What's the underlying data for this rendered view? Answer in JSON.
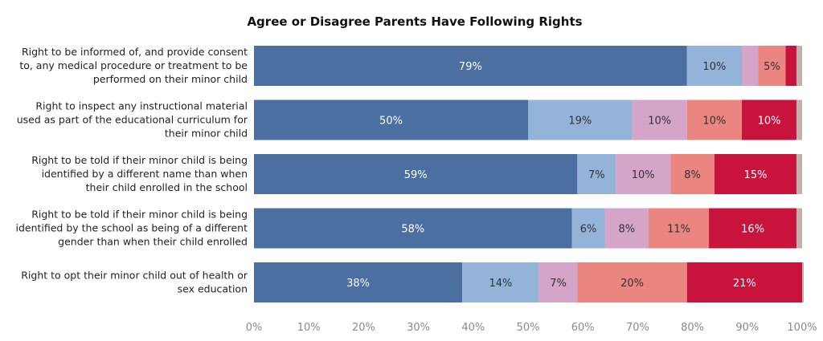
{
  "chart_data": {
    "type": "bar",
    "orientation": "horizontal",
    "stacked": true,
    "title": "Agree or Disagree Parents Have Following Rights",
    "categories": [
      [
        "Right to be informed of, and provide consent",
        "to, any medical procedure or treatment to be",
        "performed on their minor child"
      ],
      [
        "Right to inspect any instructional material",
        "used as part of the educational curriculum for",
        "their minor child"
      ],
      [
        "Right to be told if their minor child is being",
        "identified by a different name than when",
        "their child enrolled in the school"
      ],
      [
        "Right to be told if their minor child is being",
        "identified by the school as being of a different",
        "gender than when their child enrolled"
      ],
      [
        "Right to opt their minor child out of health or",
        "sex education"
      ]
    ],
    "series": [
      {
        "color": "#4a6fa0",
        "label_color": "#ffffff",
        "values": [
          79,
          50,
          59,
          58,
          38
        ],
        "labels": [
          "79%",
          "50%",
          "59%",
          "58%",
          "38%"
        ]
      },
      {
        "color": "#93b3d9",
        "label_color": "#333333",
        "values": [
          10,
          19,
          7,
          6,
          14
        ],
        "labels": [
          "10%",
          "19%",
          "7%",
          "6%",
          "14%"
        ]
      },
      {
        "color": "#d4a4c9",
        "label_color": "#333333",
        "values": [
          3,
          10,
          10,
          8,
          7
        ],
        "labels": [
          "",
          "10%",
          "10%",
          "8%",
          "7%"
        ]
      },
      {
        "color": "#ea8580",
        "label_color": "#333333",
        "values": [
          5,
          10,
          8,
          11,
          20
        ],
        "labels": [
          "5%",
          "10%",
          "8%",
          "11%",
          "20%"
        ]
      },
      {
        "color": "#c8143c",
        "label_color": "#ffffff",
        "values": [
          2,
          10,
          15,
          16,
          21
        ],
        "labels": [
          "",
          "10%",
          "15%",
          "16%",
          "21%"
        ]
      },
      {
        "color": "#bfb2ac",
        "label_color": "#333333",
        "values": [
          1,
          1,
          1,
          1,
          0.3
        ],
        "labels": [
          "",
          "",
          "",
          "",
          ""
        ]
      }
    ],
    "xlim": [
      0,
      100
    ],
    "xticks": [
      "0%",
      "10%",
      "20%",
      "30%",
      "40%",
      "50%",
      "60%",
      "70%",
      "80%",
      "90%",
      "100%"
    ],
    "legend": "none",
    "grid": false
  }
}
